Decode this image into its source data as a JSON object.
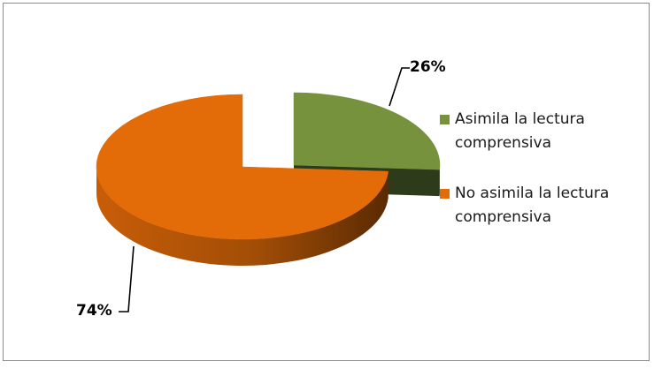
{
  "chart_data": {
    "type": "pie",
    "title": "",
    "slices": [
      {
        "label": "Asimila la lectura comprensiva",
        "value": 26,
        "display": "26%",
        "color": "#76923c",
        "side_color": "#2e3b1a"
      },
      {
        "label": "No asimila la lectura comprensiva",
        "value": 74,
        "display": "74%",
        "color": "#e36c09",
        "side_color": "#7a3a05"
      }
    ],
    "exploded_slice": 0,
    "legend_position": "right",
    "style": "3d"
  }
}
